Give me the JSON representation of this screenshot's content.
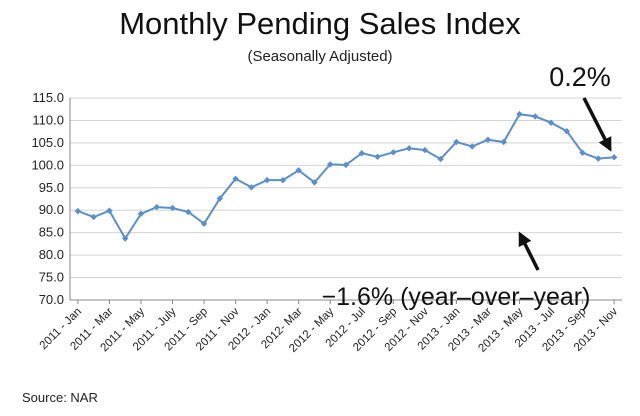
{
  "chart_data": {
    "type": "line",
    "title": "Monthly Pending Sales Index",
    "subtitle": "(Seasonally Adjusted)",
    "xlabel": "",
    "ylabel": "",
    "ylim": [
      70.0,
      115.0
    ],
    "y_ticks": [
      "115.0",
      "110.0",
      "105.0",
      "100.0",
      "95.0",
      "90.0",
      "85.0",
      "80.0",
      "75.0",
      "70.0"
    ],
    "x_tick_labels": [
      "2011 - Jan",
      "2011 - Mar",
      "2011 - May",
      "2011 - July",
      "2011 - Sep",
      "2011 - Nov",
      "2012 - Jan",
      "2012- Mar",
      "2012 - May",
      "2012 - Jul",
      "2012 - Sep",
      "2012 - Nov",
      "2013 - Jan",
      "2013 - Mar",
      "2013 - May",
      "2013 - Jul",
      "2013 - Sep",
      "2013 - Nov"
    ],
    "grid": true,
    "series": [
      {
        "color": "#5b8fc7",
        "values": [
          89.8,
          88.5,
          89.9,
          83.7,
          89.2,
          90.7,
          90.5,
          89.6,
          87.0,
          92.6,
          97.0,
          95.1,
          96.7,
          96.7,
          98.9,
          96.2,
          100.2,
          100.1,
          102.7,
          101.9,
          102.9,
          103.8,
          103.4,
          101.4,
          105.2,
          104.2,
          105.7,
          105.2,
          111.4,
          110.9,
          109.5,
          107.6,
          102.8,
          101.5,
          101.8
        ]
      }
    ],
    "annotations": {
      "top_right": "0.2%",
      "bottom": "−1.6% (year–over–year)"
    }
  },
  "source": "Source: NAR"
}
